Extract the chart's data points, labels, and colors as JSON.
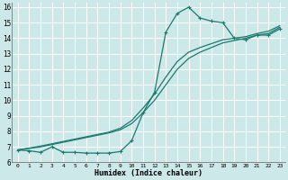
{
  "xlabel": "Humidex (Indice chaleur)",
  "bg_color": "#cce8e8",
  "grid_color": "#ffffff",
  "line_color": "#1a7a6e",
  "xlim": [
    -0.5,
    23.5
  ],
  "ylim": [
    6,
    16.3
  ],
  "xticks": [
    0,
    1,
    2,
    3,
    4,
    5,
    6,
    7,
    8,
    9,
    10,
    11,
    12,
    13,
    14,
    15,
    16,
    17,
    18,
    19,
    20,
    21,
    22,
    23
  ],
  "yticks": [
    6,
    7,
    8,
    9,
    10,
    11,
    12,
    13,
    14,
    15,
    16
  ],
  "line1_x": [
    0,
    1,
    2,
    3,
    4,
    5,
    6,
    7,
    8,
    9,
    10,
    11,
    12,
    13,
    14,
    15,
    16,
    17,
    18,
    19,
    20,
    21,
    22,
    23
  ],
  "line1_y": [
    6.8,
    6.75,
    6.65,
    7.0,
    6.65,
    6.65,
    6.6,
    6.6,
    6.6,
    6.7,
    7.4,
    9.2,
    10.5,
    14.4,
    15.6,
    16.0,
    15.3,
    15.1,
    15.0,
    14.0,
    13.9,
    14.2,
    14.2,
    14.6
  ],
  "line2_x": [
    0,
    1,
    2,
    3,
    4,
    5,
    6,
    7,
    8,
    9,
    10,
    11,
    12,
    13,
    14,
    15,
    16,
    17,
    18,
    19,
    20,
    21,
    22,
    23
  ],
  "line2_y": [
    6.8,
    6.9,
    7.0,
    7.15,
    7.3,
    7.45,
    7.6,
    7.75,
    7.9,
    8.1,
    8.5,
    9.2,
    10.0,
    11.0,
    12.0,
    12.7,
    13.1,
    13.4,
    13.7,
    13.85,
    14.0,
    14.2,
    14.3,
    14.7
  ],
  "line3_x": [
    0,
    1,
    2,
    3,
    4,
    5,
    6,
    7,
    8,
    9,
    10,
    11,
    12,
    13,
    14,
    15,
    16,
    17,
    18,
    19,
    20,
    21,
    22,
    23
  ],
  "line3_y": [
    6.8,
    6.92,
    7.05,
    7.2,
    7.35,
    7.5,
    7.65,
    7.8,
    7.95,
    8.2,
    8.7,
    9.5,
    10.4,
    11.5,
    12.5,
    13.1,
    13.4,
    13.65,
    13.9,
    14.0,
    14.1,
    14.3,
    14.45,
    14.8
  ]
}
